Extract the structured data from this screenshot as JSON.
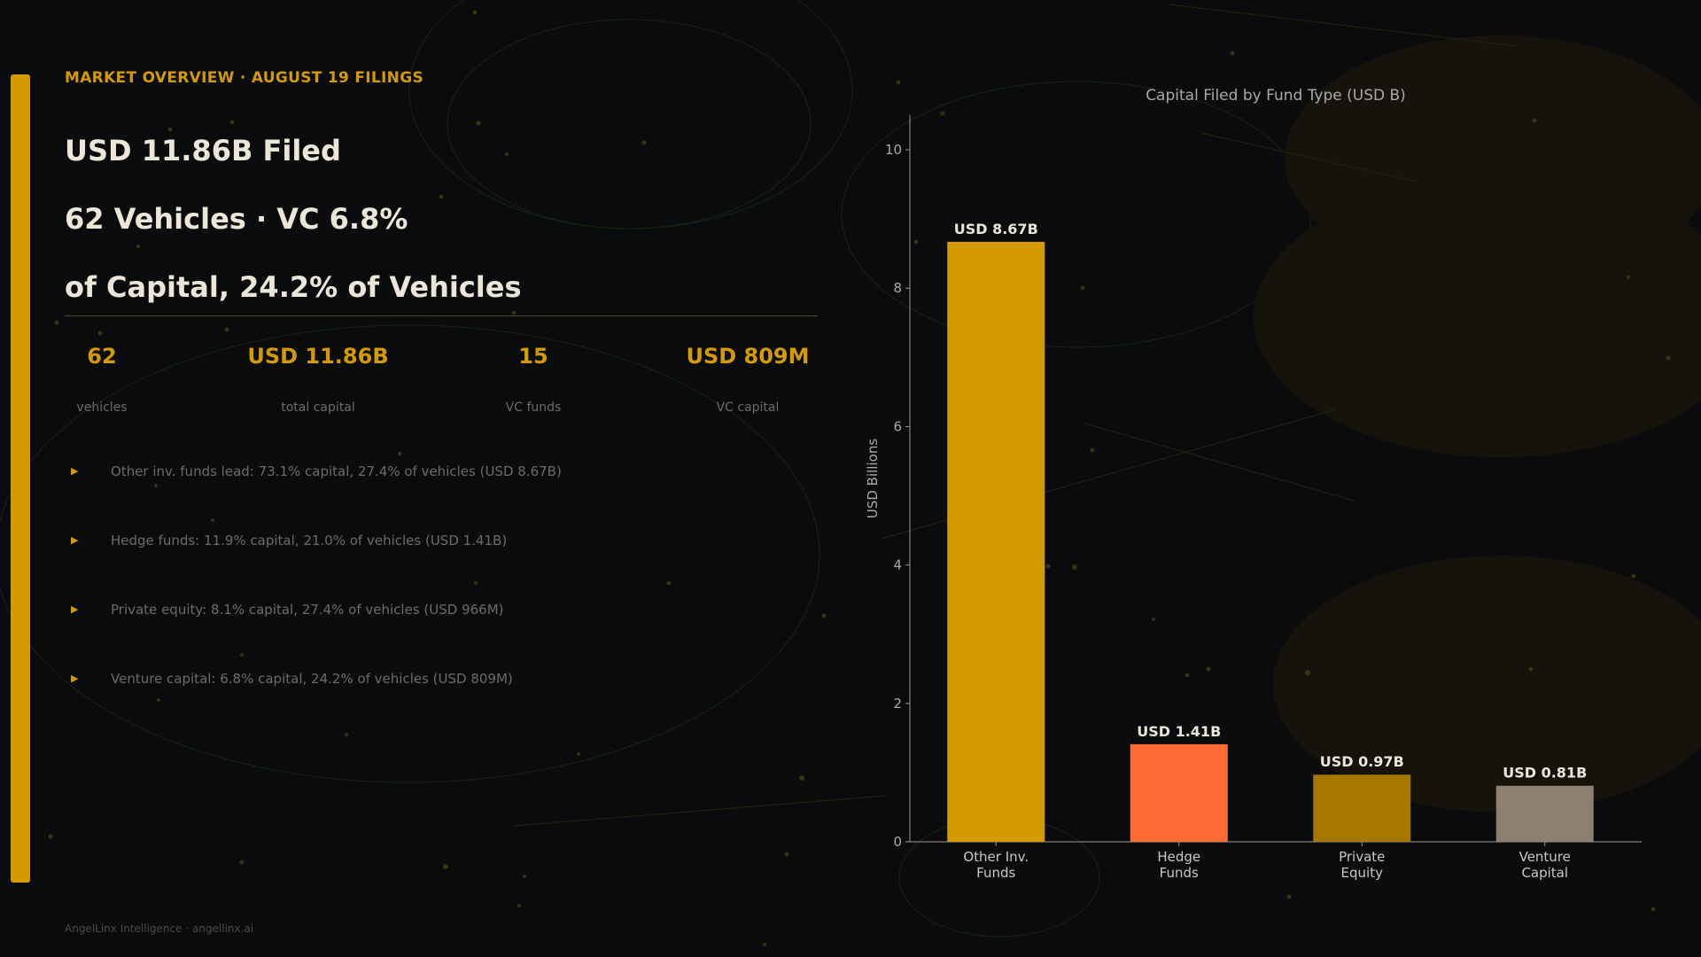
{
  "header": {
    "eyebrow": "MARKET OVERVIEW · AUGUST 19 FILINGS",
    "headline_lines": [
      "USD 11.86B Filed",
      "62 Vehicles · VC 6.8%",
      "of Capital, 24.2% of Vehicles"
    ]
  },
  "stats": [
    {
      "value": "62",
      "label": "vehicles"
    },
    {
      "value": "USD 11.86B",
      "label": "total capital"
    },
    {
      "value": "15",
      "label": "VC funds"
    },
    {
      "value": "USD 809M",
      "label": "VC capital"
    }
  ],
  "bullets": [
    "Other inv. funds lead: 73.1% capital, 27.4% of vehicles (USD 8.67B)",
    "Hedge funds: 11.9% capital, 21.0% of vehicles (USD 1.41B)",
    "Private equity: 8.1% capital, 27.4% of vehicles (USD 966M)",
    "Venture capital: 6.8% capital, 24.2% of vehicles (USD 809M)"
  ],
  "footer": "AngelLinx Intelligence  ·  angellinx.ai",
  "colors": {
    "accent": "#d49b00",
    "background": "#0a0b0c",
    "text": "#ece6d8",
    "muted": "#6b6b6b"
  },
  "chart_data": {
    "type": "bar",
    "title": "Capital Filed by Fund Type (USD B)",
    "xlabel": "",
    "ylabel": "USD Billions",
    "categories": [
      "Other Inv.\nFunds",
      "Hedge\nFunds",
      "Private\nEquity",
      "Venture\nCapital"
    ],
    "values": [
      8.67,
      1.41,
      0.97,
      0.81
    ],
    "data_labels": [
      "USD 8.67B",
      "USD 1.41B",
      "USD 0.97B",
      "USD 0.81B"
    ],
    "colors": [
      "#d49b00",
      "#ff6b35",
      "#a67800",
      "#8c8070"
    ],
    "ylim": [
      0,
      10.5
    ],
    "yticks": [
      0,
      2,
      4,
      6,
      8,
      10
    ],
    "grid": false,
    "legend": "none"
  }
}
